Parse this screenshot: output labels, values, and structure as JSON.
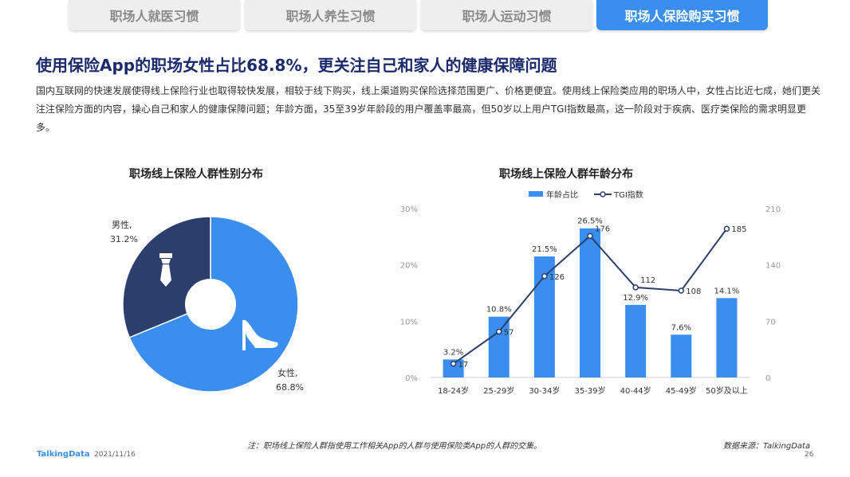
{
  "tabs": [
    {
      "label": "职场人就医习惯",
      "active": false
    },
    {
      "label": "职场人养生习惯",
      "active": false
    },
    {
      "label": "职场人运动习惯",
      "active": false
    },
    {
      "label": "职场人保险购买习惯",
      "active": true
    }
  ],
  "headline": "使用保险App的职场女性占比68.8%，更关注自己和家人的健康保障问题",
  "description": "国内互联网的快速发展使得线上保险行业也取得较快发展，相较于线下购买，线上渠道购买保险选择范围更广、价格更便宜。使用线上保险类应用的职场人中，女性占比近七成，她们更关注注保险方面的内容，操心自己和家人的健康保障问题；年龄方面，35至39岁年龄段的用户覆盖率最高，但50岁以上用户TGI指数最高，这一阶段对于疾病、医疗类保险的需求明显更多。",
  "colors": {
    "accent": "#3a8ef0",
    "dark_series": "#2c3e6b",
    "line": "#2c3e6b"
  },
  "chart_data": [
    {
      "type": "pie",
      "title": "职场线上保险人群性别分布",
      "slices": [
        {
          "label": "女性,",
          "value": 68.8,
          "value_label": "68.8%",
          "icon": "high-heel-icon",
          "color": "#3a8ef0"
        },
        {
          "label": "男性,",
          "value": 31.2,
          "value_label": "31.2%",
          "icon": "necktie-icon",
          "color": "#2c3e6b"
        }
      ]
    },
    {
      "type": "bar",
      "title": "职场线上保险人群年龄分布",
      "categories": [
        "18-24岁",
        "25-29岁",
        "30-34岁",
        "35-39岁",
        "40-44岁",
        "45-49岁",
        "50岁及以上"
      ],
      "series": [
        {
          "name": "年龄占比",
          "type": "bar",
          "axis": "left",
          "values": [
            3.2,
            10.8,
            21.5,
            26.5,
            12.9,
            7.6,
            14.1
          ],
          "labels": [
            "3.2%",
            "10.8%",
            "21.5%",
            "26.5%",
            "12.9%",
            "7.6%",
            "14.1%"
          ]
        },
        {
          "name": "TGI指数",
          "type": "line",
          "axis": "right",
          "values": [
            17,
            57,
            126,
            176,
            112,
            108,
            185
          ],
          "labels": [
            "17",
            "57",
            "126",
            "176",
            "112",
            "108",
            "185"
          ]
        }
      ],
      "y_left": {
        "min": 0,
        "max": 30,
        "ticks": [
          "0%",
          "10%",
          "20%",
          "30%"
        ]
      },
      "y_right": {
        "min": 0,
        "max": 210,
        "ticks": [
          "0",
          "70",
          "140",
          "210"
        ]
      },
      "legend_position": "top"
    }
  ],
  "footer": {
    "note": "注：职场线上保险人群指使用工作相关App的人群与使用保险类App的人群的交集。",
    "source": "数据来源：TalkingData",
    "brand": "TalkingData",
    "date": "2021/11/16",
    "page": "26"
  }
}
